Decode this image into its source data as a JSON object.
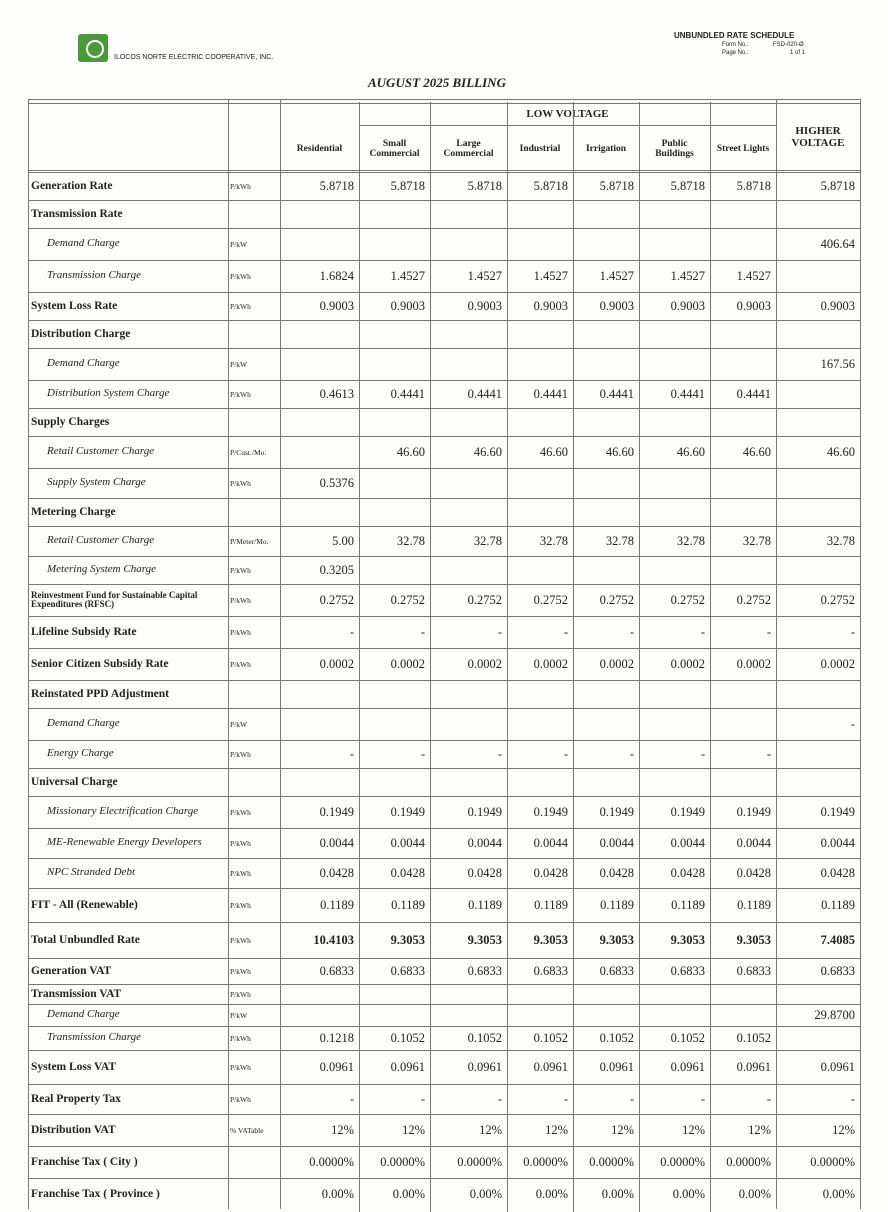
{
  "header": {
    "company": "ILOCOS NORTE ELECTRIC COOPERATIVE, INC.",
    "schedule_title": "UNBUNDLED RATE SCHEDULE",
    "form_label": "Form No.:",
    "form_no": "FSD-020-Ø",
    "page_label": "Page No.:",
    "page_no": "1 of 1",
    "billing": "AUGUST 2025 BILLING"
  },
  "table": {
    "group_header": "LOW VOLTAGE",
    "columns": [
      "Residential",
      "Small Commercial",
      "Large Commercial",
      "Industrial",
      "Irrigation",
      "Public Buildings",
      "Street Lights",
      "HIGHER VOLTAGE"
    ],
    "rows": [
      {
        "label": "Generation Rate",
        "unit": "P/kWh",
        "values": [
          "5.8718",
          "5.8718",
          "5.8718",
          "5.8718",
          "5.8718",
          "5.8718",
          "5.8718",
          "5.8718"
        ]
      },
      {
        "label": "Transmission Rate"
      },
      {
        "label": "Demand Charge",
        "unit": "P/kW",
        "values": [
          null,
          null,
          null,
          null,
          null,
          null,
          null,
          "406.64"
        ]
      },
      {
        "label": "Transmission Charge",
        "unit": "P/kWh",
        "values": [
          "1.6824",
          "1.4527",
          "1.4527",
          "1.4527",
          "1.4527",
          "1.4527",
          "1.4527",
          null
        ]
      },
      {
        "label": "System Loss Rate",
        "unit": "P/kWh",
        "values": [
          "0.9003",
          "0.9003",
          "0.9003",
          "0.9003",
          "0.9003",
          "0.9003",
          "0.9003",
          "0.9003"
        ]
      },
      {
        "label": "Distribution Charge"
      },
      {
        "label": "Demand Charge",
        "unit": "P/kW",
        "values": [
          null,
          null,
          null,
          null,
          null,
          null,
          null,
          "167.56"
        ]
      },
      {
        "label": "Distribution System Charge",
        "unit": "P/kWh",
        "values": [
          "0.4613",
          "0.4441",
          "0.4441",
          "0.4441",
          "0.4441",
          "0.4441",
          "0.4441",
          null
        ]
      },
      {
        "label": "Supply Charges"
      },
      {
        "label": "Retail Customer Charge",
        "unit": "P/Cust./Mo.",
        "values": [
          null,
          "46.60",
          "46.60",
          "46.60",
          "46.60",
          "46.60",
          "46.60",
          "46.60"
        ]
      },
      {
        "label": "Supply System Charge",
        "unit": "P/kWh",
        "values": [
          "0.5376",
          null,
          null,
          null,
          null,
          null,
          null,
          null
        ]
      },
      {
        "label": "Metering Charge"
      },
      {
        "label": "Retail Customer Charge",
        "unit": "P/Meter/Mo.",
        "values": [
          "5.00",
          "32.78",
          "32.78",
          "32.78",
          "32.78",
          "32.78",
          "32.78",
          "32.78"
        ]
      },
      {
        "label": "Metering System Charge",
        "unit": "P/kWh",
        "values": [
          "0.3205",
          null,
          null,
          null,
          null,
          null,
          null,
          null
        ]
      },
      {
        "label": "Reinvestment Fund for Sustainable Capital Expenditures (RFSC)",
        "unit": "P/kWh",
        "values": [
          "0.2752",
          "0.2752",
          "0.2752",
          "0.2752",
          "0.2752",
          "0.2752",
          "0.2752",
          "0.2752"
        ]
      },
      {
        "label": "Lifeline Subsidy Rate",
        "unit": "P/kWh",
        "values": [
          "-",
          "-",
          "-",
          "-",
          "-",
          "-",
          "-",
          "-"
        ]
      },
      {
        "label": "Senior Citizen Subsidy Rate",
        "unit": "P/kWh",
        "values": [
          "0.0002",
          "0.0002",
          "0.0002",
          "0.0002",
          "0.0002",
          "0.0002",
          "0.0002",
          "0.0002"
        ]
      },
      {
        "label": "Reinstated PPD Adjustment"
      },
      {
        "label": "Demand Charge",
        "unit": "P/kW",
        "values": [
          null,
          null,
          null,
          null,
          null,
          null,
          null,
          "-"
        ]
      },
      {
        "label": "Energy Charge",
        "unit": "P/kWh",
        "values": [
          "-",
          "-",
          "-",
          "-",
          "-",
          "-",
          "-",
          null
        ]
      },
      {
        "label": "Universal Charge"
      },
      {
        "label": "Missionary Electrification Charge",
        "unit": "P/kWh",
        "values": [
          "0.1949",
          "0.1949",
          "0.1949",
          "0.1949",
          "0.1949",
          "0.1949",
          "0.1949",
          "0.1949"
        ]
      },
      {
        "label": "ME-Renewable Energy Developers",
        "unit": "P/kWh",
        "values": [
          "0.0044",
          "0.0044",
          "0.0044",
          "0.0044",
          "0.0044",
          "0.0044",
          "0.0044",
          "0.0044"
        ]
      },
      {
        "label": "NPC Stranded Debt",
        "unit": "P/kWh",
        "values": [
          "0.0428",
          "0.0428",
          "0.0428",
          "0.0428",
          "0.0428",
          "0.0428",
          "0.0428",
          "0.0428"
        ]
      },
      {
        "label": "FIT - All (Renewable)",
        "unit": "P/kWh",
        "values": [
          "0.1189",
          "0.1189",
          "0.1189",
          "0.1189",
          "0.1189",
          "0.1189",
          "0.1189",
          "0.1189"
        ]
      },
      {
        "label": "Total Unbundled Rate",
        "unit": "P/kWh",
        "values": [
          "10.4103",
          "9.3053",
          "9.3053",
          "9.3053",
          "9.3053",
          "9.3053",
          "9.3053",
          "7.4085"
        ]
      },
      {
        "label": "Generation VAT",
        "unit": "P/kWh",
        "values": [
          "0.6833",
          "0.6833",
          "0.6833",
          "0.6833",
          "0.6833",
          "0.6833",
          "0.6833",
          "0.6833"
        ]
      },
      {
        "label": "Transmission VAT",
        "unit": "P/kWh"
      },
      {
        "label": "Demand Charge",
        "unit": "P/kW",
        "values": [
          null,
          null,
          null,
          null,
          null,
          null,
          null,
          "29.8700"
        ]
      },
      {
        "label": "Transmission Charge",
        "unit": "P/kWh",
        "values": [
          "0.1218",
          "0.1052",
          "0.1052",
          "0.1052",
          "0.1052",
          "0.1052",
          "0.1052",
          null
        ]
      },
      {
        "label": "System Loss VAT",
        "unit": "P/kWh",
        "values": [
          "0.0961",
          "0.0961",
          "0.0961",
          "0.0961",
          "0.0961",
          "0.0961",
          "0.0961",
          "0.0961"
        ]
      },
      {
        "label": "Real Property Tax",
        "unit": "P/kWh",
        "values": [
          "-",
          "-",
          "-",
          "-",
          "-",
          "-",
          "-",
          "-"
        ]
      },
      {
        "label": "Distribution VAT",
        "unit": "% VATable",
        "values": [
          "12%",
          "12%",
          "12%",
          "12%",
          "12%",
          "12%",
          "12%",
          "12%"
        ]
      },
      {
        "label": "Franchise Tax ( City )",
        "values": [
          "0.0000%",
          "0.0000%",
          "0.0000%",
          "0.0000%",
          "0.0000%",
          "0.0000%",
          "0.0000%",
          "0.0000%"
        ]
      },
      {
        "label": "Franchise Tax ( Province )",
        "values": [
          "0.00%",
          "0.00%",
          "0.00%",
          "0.00%",
          "0.00%",
          "0.00%",
          "0.00%",
          "0.00%"
        ]
      }
    ]
  }
}
